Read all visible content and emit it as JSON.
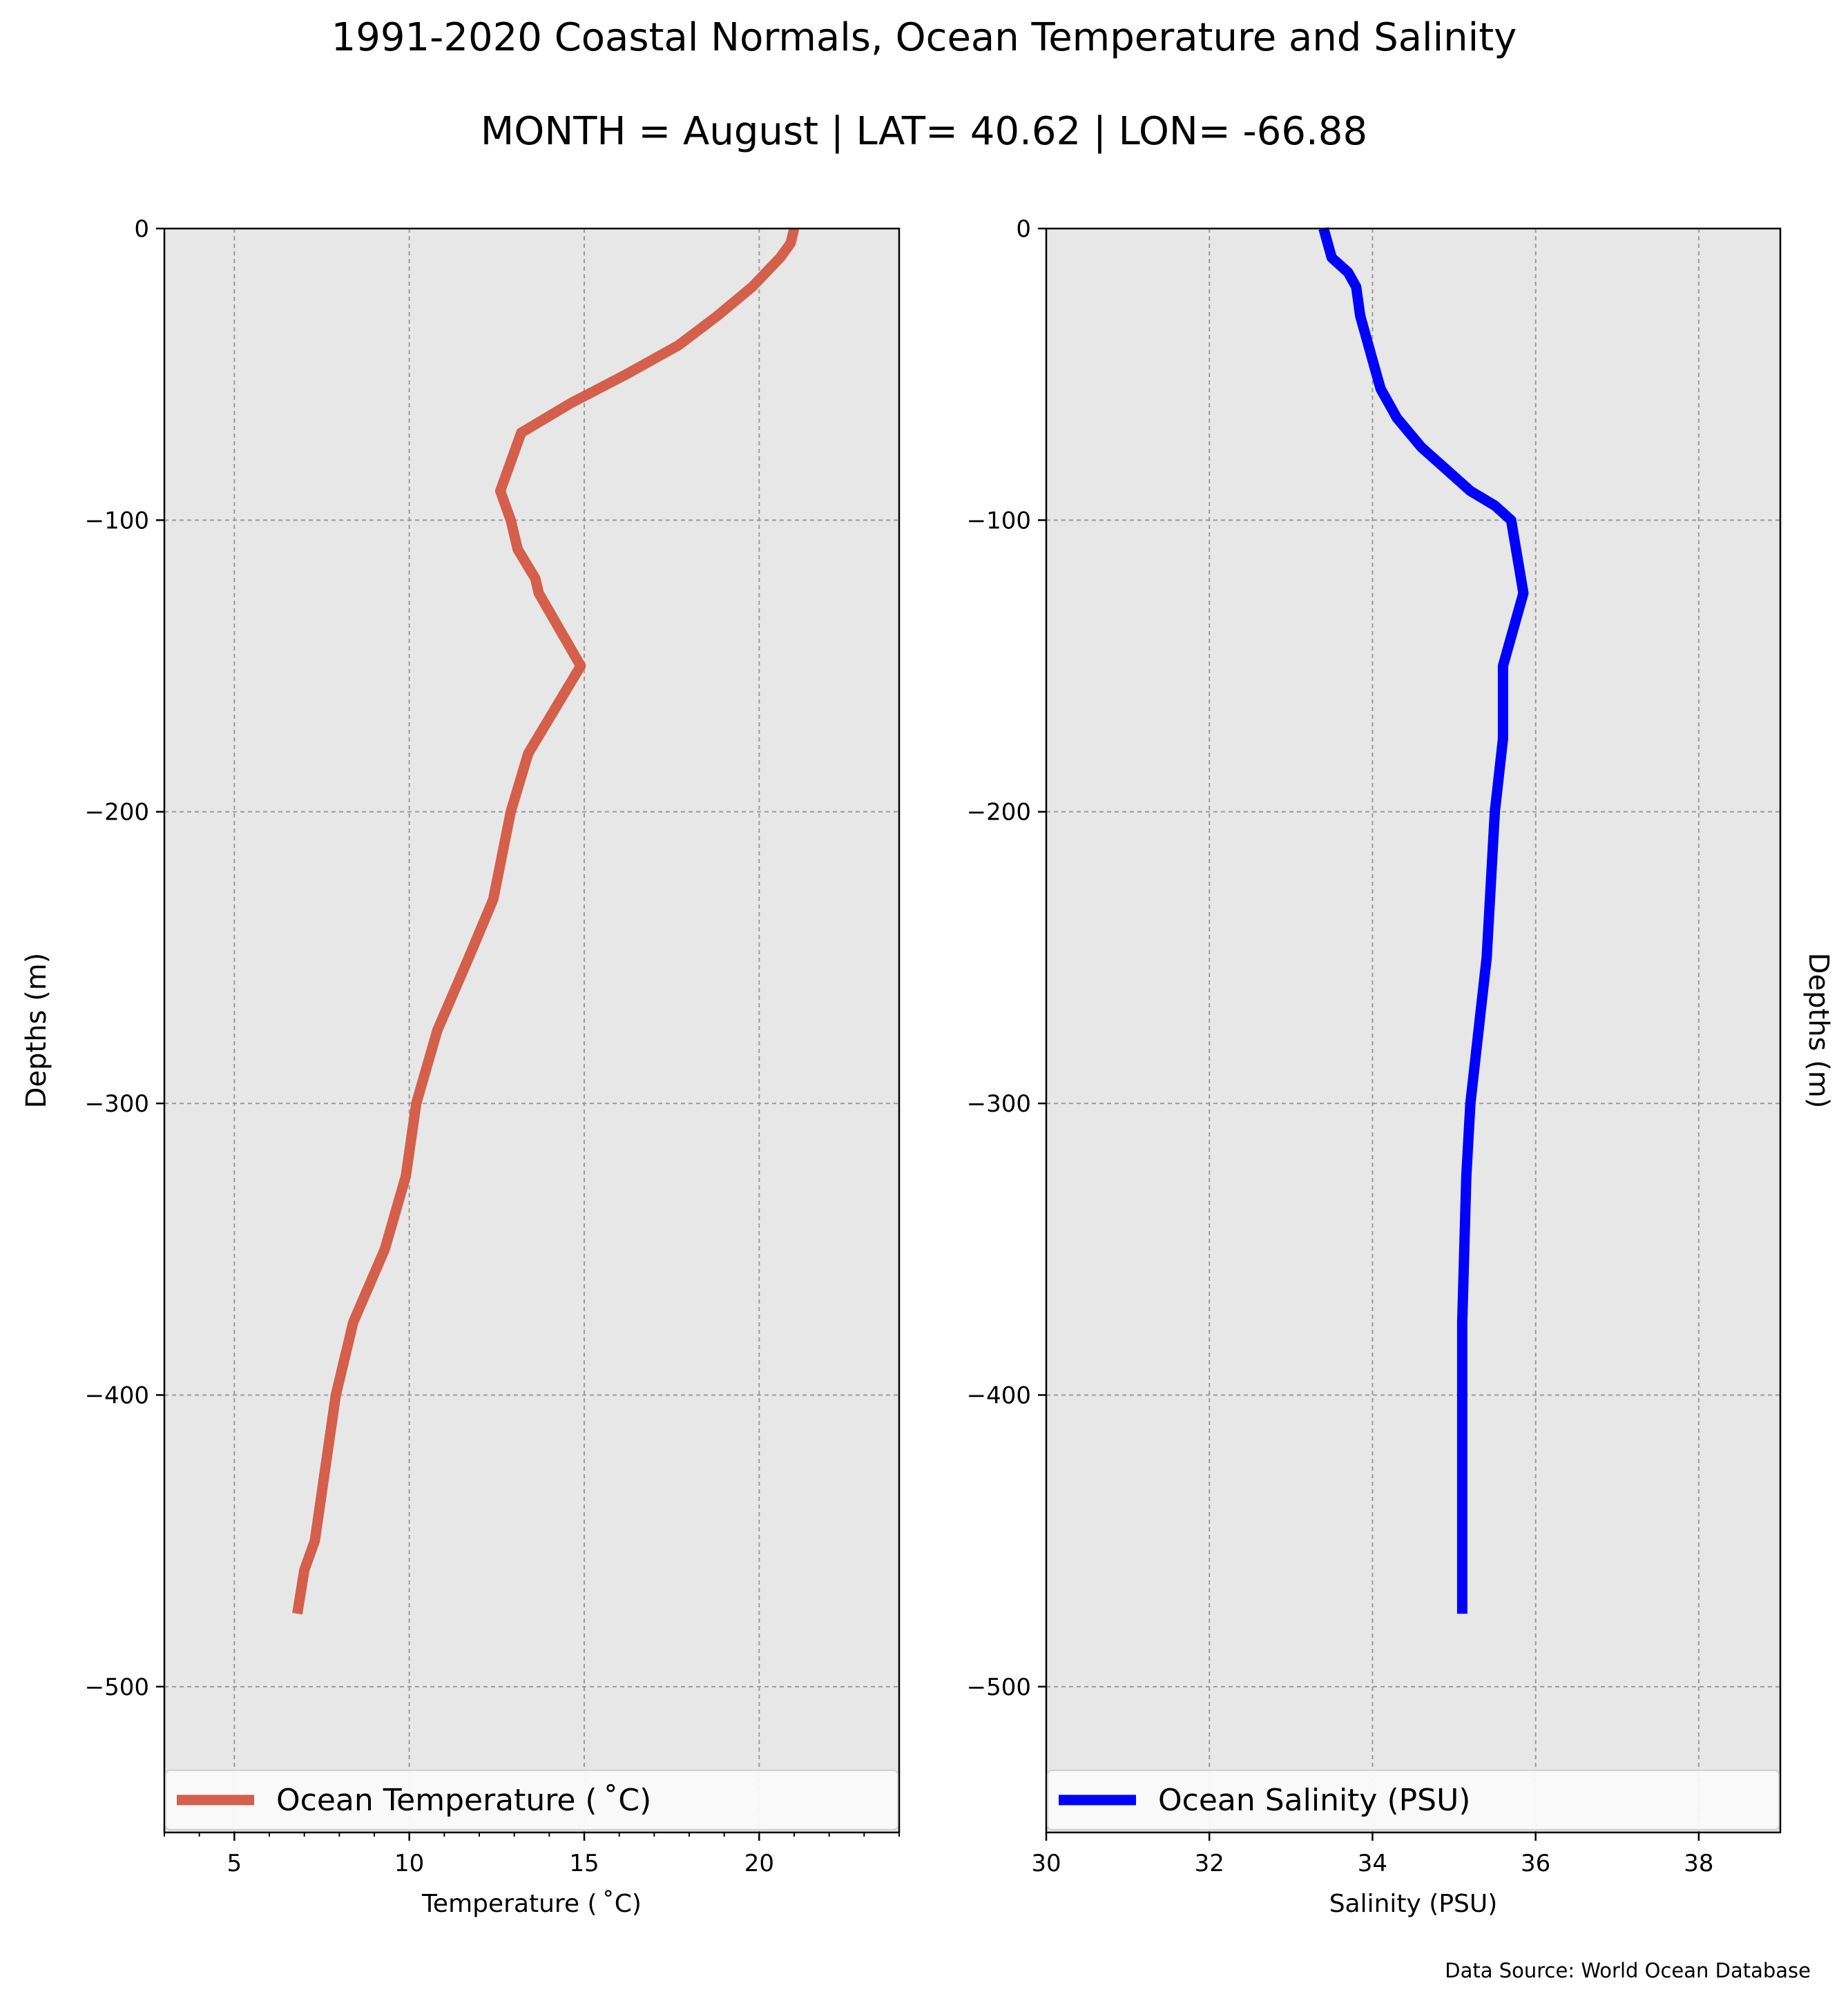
{
  "title": "1991-2020 Coastal Normals, Ocean Temperature and Salinity",
  "subtitle": "MONTH = August | LAT= 40.62 | LON= -66.88",
  "source_note": "Data Source: World Ocean Database",
  "chart_data": [
    {
      "type": "line",
      "title": "",
      "xlabel": "Temperature ($^\\circ$C)",
      "xlabel_display": "Temperature ( ˚C)",
      "ylabel": "Depths (m)",
      "xlim": [
        3,
        24
      ],
      "ylim": [
        -550,
        0
      ],
      "xticks": [
        5,
        10,
        15,
        20
      ],
      "yticks": [
        0,
        -100,
        -200,
        -300,
        -400,
        -500
      ],
      "ytick_labels": [
        "0",
        "−100",
        "−200",
        "−300",
        "−400",
        "−500"
      ],
      "grid": true,
      "legend": "lower center",
      "series": [
        {
          "name": "Ocean Temperature ( ˚C)",
          "color": "#d45f4b",
          "x": [
            21.0,
            20.9,
            20.6,
            19.8,
            18.8,
            17.7,
            16.2,
            14.6,
            13.2,
            12.9,
            12.6,
            12.9,
            13.1,
            13.6,
            13.7,
            14.9,
            13.4,
            12.9,
            12.4,
            11.7,
            10.8,
            10.2,
            9.9,
            9.3,
            8.4,
            7.9,
            7.6,
            7.3,
            7.0,
            6.8
          ],
          "y": [
            0,
            -5,
            -10,
            -20,
            -30,
            -40,
            -50,
            -60,
            -70,
            -80,
            -90,
            -100,
            -110,
            -120,
            -125,
            -150,
            -180,
            -200,
            -230,
            -250,
            -275,
            -300,
            -325,
            -350,
            -375,
            -400,
            -425,
            -450,
            -460,
            -475
          ]
        }
      ]
    },
    {
      "type": "line",
      "title": "",
      "xlabel": "Salinity (PSU)",
      "ylabel": "Depths (m)",
      "xlim": [
        30,
        39
      ],
      "ylim": [
        -550,
        0
      ],
      "xticks": [
        30,
        32,
        34,
        36,
        38
      ],
      "yticks": [
        0,
        -100,
        -200,
        -300,
        -400,
        -500
      ],
      "ytick_labels": [
        "0",
        "−100",
        "−200",
        "−300",
        "−400",
        "−500"
      ],
      "grid": true,
      "legend": "lower center",
      "series": [
        {
          "name": "Ocean Salinity (PSU)",
          "color": "#0000ff",
          "x": [
            33.4,
            33.45,
            33.5,
            33.7,
            33.8,
            33.85,
            33.95,
            34.0,
            34.05,
            34.1,
            34.2,
            34.3,
            34.45,
            34.6,
            34.8,
            35.0,
            35.2,
            35.5,
            35.7,
            35.85,
            35.6,
            35.6,
            35.5,
            35.4,
            35.3,
            35.2,
            35.15,
            35.1,
            35.1,
            35.1
          ],
          "y": [
            0,
            -5,
            -10,
            -15,
            -20,
            -30,
            -40,
            -45,
            -50,
            -55,
            -60,
            -65,
            -70,
            -75,
            -80,
            -85,
            -90,
            -95,
            -100,
            -125,
            -150,
            -175,
            -200,
            -250,
            -275,
            -300,
            -325,
            -375,
            -400,
            -475
          ]
        }
      ]
    }
  ]
}
